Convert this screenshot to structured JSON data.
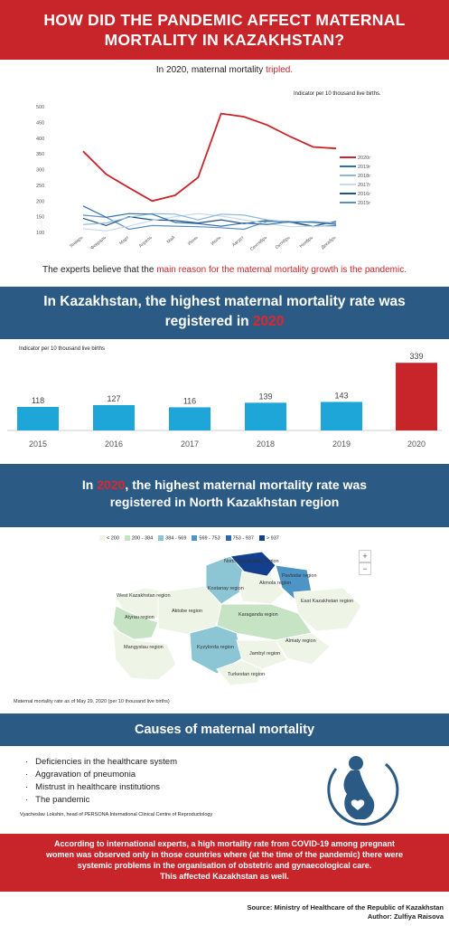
{
  "header": {
    "line1": "HOW DID THE PANDEMIC AFFECT MATERNAL",
    "line2": "MORTALITY IN KAZAKHSTAN?"
  },
  "subtitle": {
    "before": "In 2020, maternal mortality ",
    "highlight": "tripled."
  },
  "indicator_monthly": "Indicator per 10 thousand live births.",
  "expert": {
    "before": "The experts believe that the ",
    "highlight": "main reason for the maternal mortality growth is the pandemic."
  },
  "band1": {
    "line1": "In Kazakhstan, the highest maternal mortality rate was",
    "line2_before": "registered in ",
    "line2_year": "2020"
  },
  "indicator_annual": "Indicator per 10 thousand live births",
  "band2": {
    "line1_year": "2020",
    "line1_after": ", the highest maternal mortality rate was",
    "line1_before": "In ",
    "line2": "registered in North Kazakhstan region"
  },
  "map": {
    "legend": [
      {
        "label": "< 200",
        "color": "#eef4e6"
      },
      {
        "label": "200 - 384",
        "color": "#c6e3c4"
      },
      {
        "label": "384 - 569",
        "color": "#8cc5d4"
      },
      {
        "label": "569 - 753",
        "color": "#4d95c4"
      },
      {
        "label": "753 - 937",
        "color": "#2a66a8"
      },
      {
        "label": "> 937",
        "color": "#143f8c"
      }
    ],
    "zoom_in": "+",
    "zoom_out": "−",
    "regions": {
      "north": "North Kazakhstan region",
      "pavlodar": "Pavlodar region",
      "akmola": "Akmola region",
      "kostanay": "Kostanay region",
      "wk": "West Kazakhstan region",
      "aktobe": "Aktobe region",
      "ek": "East Kazakhstan region",
      "atyrau": "Atyrau region",
      "karaganda": "Karaganda region",
      "almaty": "Almaty region",
      "mangystau": "Mangystau region",
      "kyzylorda": "Kyzylorda region",
      "jambyl": "Jambyl region",
      "turkestan": "Turkestan region"
    },
    "note": "Maternal mortality rate as of May 29, 2020 (per 10 thousand live births)"
  },
  "band3": {
    "title": "Causes of maternal mortality"
  },
  "causes": [
    "Deficiencies in the healthcare system",
    "Aggravation of pneumonia",
    "Mistrust in healthcare institutions",
    "The pandemic"
  ],
  "quote": "Vyacheslav Lokshin, head of PERSONA International Clinical Centre of Reproductology",
  "redbox": {
    "line1": "According to international experts, a high mortality rate from COVID-19 among pregnant",
    "line2": "women was observed only in those countries where (at the time of the pandemic) there were",
    "line3": "systemic problems in the organisation of obstetric and gynaecological care.",
    "line4": "This affected Kazakhstan as well."
  },
  "source": {
    "line1": "Source: Ministry of Healthcare of the Republic of Kazakhstan",
    "line2": "Author: Zulfiya Raisova"
  },
  "chart_data": [
    {
      "type": "line",
      "x": [
        "Январь",
        "Февраль",
        "Март",
        "Апрель",
        "Май",
        "Июнь",
        "Июль",
        "Август",
        "Сентябрь",
        "Октябрь",
        "Ноябрь",
        "Декабрь"
      ],
      "ylim": [
        100,
        500
      ],
      "yticks": [
        100,
        150,
        200,
        250,
        300,
        350,
        400,
        450,
        500
      ],
      "series": [
        {
          "name": "2020г",
          "color": "#c8252b",
          "width": 1.8,
          "values": [
            358,
            285,
            242,
            200,
            218,
            275,
            478,
            468,
            442,
            405,
            372,
            367
          ]
        },
        {
          "name": "2019г",
          "color": "#2f6fad",
          "width": 1.2,
          "values": [
            184,
            148,
            160,
            158,
            132,
            128,
            120,
            130,
            125,
            134,
            132,
            126
          ]
        },
        {
          "name": "2018г",
          "color": "#8fb7d8",
          "width": 1.2,
          "values": [
            125,
            130,
            148,
            160,
            158,
            140,
            158,
            155,
            140,
            132,
            135,
            130
          ]
        },
        {
          "name": "2017г",
          "color": "#c7d9ea",
          "width": 1.2,
          "values": [
            112,
            105,
            120,
            138,
            150,
            160,
            152,
            140,
            128,
            118,
            120,
            118
          ]
        },
        {
          "name": "2016г",
          "color": "#1f4f86",
          "width": 1.2,
          "values": [
            145,
            122,
            150,
            140,
            138,
            130,
            140,
            128,
            138,
            134,
            120,
            135
          ]
        },
        {
          "name": "2015г",
          "color": "#5b8ec4",
          "width": 1.2,
          "values": [
            155,
            148,
            110,
            122,
            120,
            118,
            115,
            110,
            135,
            132,
            118,
            122
          ]
        }
      ],
      "legend_position": "right"
    },
    {
      "type": "bar",
      "categories": [
        "2015",
        "2016",
        "2017",
        "2018",
        "2019",
        "2020"
      ],
      "values": [
        118,
        127,
        116,
        139,
        143,
        339
      ],
      "colors": [
        "#1fa6d8",
        "#1fa6d8",
        "#1fa6d8",
        "#1fa6d8",
        "#1fa6d8",
        "#c8252b"
      ],
      "ylim": [
        0,
        340
      ],
      "grid": false
    }
  ]
}
